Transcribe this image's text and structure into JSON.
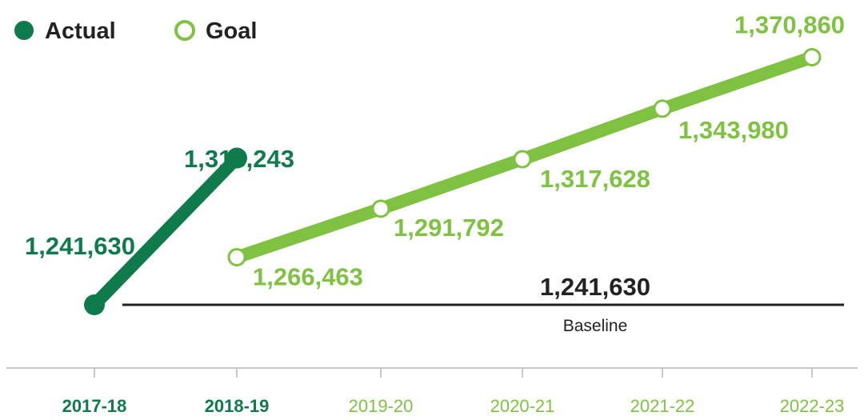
{
  "chart_data": {
    "type": "line",
    "categories": [
      "2017-18",
      "2018-19",
      "2019-20",
      "2020-21",
      "2021-22",
      "2022-23"
    ],
    "series": [
      {
        "name": "Actual",
        "color": "#0f7a4b",
        "x": [
          "2017-18",
          "2018-19"
        ],
        "values": [
          1241630,
          1318243
        ],
        "labels": [
          "1,241,630",
          "1,318,243"
        ],
        "marker": "filled-circle"
      },
      {
        "name": "Goal",
        "color": "#7fc241",
        "x": [
          "2018-19",
          "2019-20",
          "2020-21",
          "2021-22",
          "2022-23"
        ],
        "values": [
          1266463,
          1291792,
          1317628,
          1343980,
          1370860
        ],
        "labels": [
          "1,266,463",
          "1,291,792",
          "1,317,628",
          "1,343,980",
          "1,370,860"
        ],
        "marker": "hollow-circle"
      }
    ],
    "baseline": {
      "value": 1241630,
      "label": "1,241,630",
      "caption": "Baseline"
    },
    "legend": {
      "position": "top-left"
    },
    "grid": false,
    "title": "",
    "xlabel": "",
    "ylabel": "",
    "ylim": [
      1200000,
      1400000
    ],
    "tick_colors": {
      "2017-18": "#0f7a4b",
      "2018-19": "#0f7a4b",
      "2019-20": "#7fc241",
      "2020-21": "#7fc241",
      "2021-22": "#7fc241",
      "2022-23": "#7fc241"
    },
    "tick_bold": [
      "2017-18",
      "2018-19"
    ]
  }
}
